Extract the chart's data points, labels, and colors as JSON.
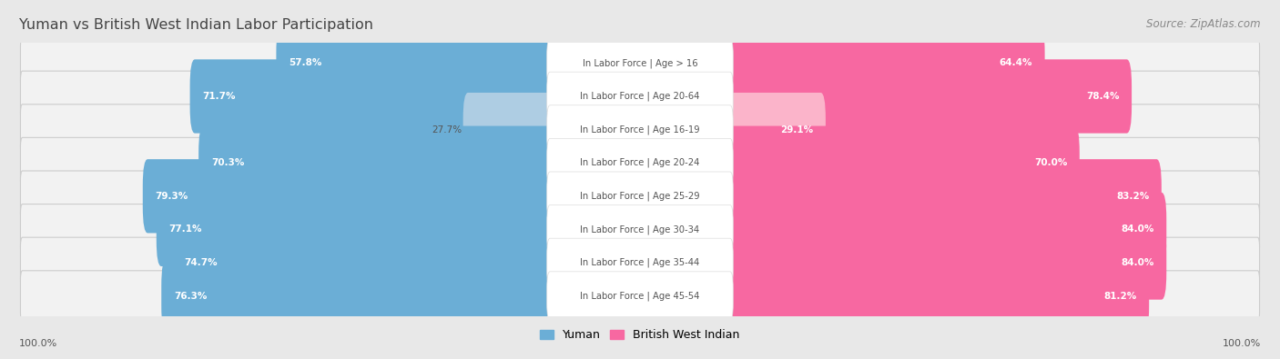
{
  "title": "Yuman vs British West Indian Labor Participation",
  "source": "Source: ZipAtlas.com",
  "categories": [
    "In Labor Force | Age > 16",
    "In Labor Force | Age 20-64",
    "In Labor Force | Age 16-19",
    "In Labor Force | Age 20-24",
    "In Labor Force | Age 25-29",
    "In Labor Force | Age 30-34",
    "In Labor Force | Age 35-44",
    "In Labor Force | Age 45-54"
  ],
  "yuman_values": [
    57.8,
    71.7,
    27.7,
    70.3,
    79.3,
    77.1,
    74.7,
    76.3
  ],
  "bwi_values": [
    64.4,
    78.4,
    29.1,
    70.0,
    83.2,
    84.0,
    84.0,
    81.2
  ],
  "yuman_color": "#6baed6",
  "yuman_color_light": "#aecde3",
  "bwi_color": "#f768a1",
  "bwi_color_light": "#fbb4ca",
  "yuman_label": "Yuman",
  "bwi_label": "British West Indian",
  "background_color": "#e8e8e8",
  "row_bg_color": "#f2f2f2",
  "row_bg_dark": "#e0e0e0",
  "max_value": 100.0,
  "legend_yuman_color": "#6baed6",
  "legend_bwi_color": "#f768a1",
  "title_color": "#444444",
  "source_color": "#888888",
  "label_color": "#555555",
  "value_color_white": "#ffffff",
  "value_color_dark": "#555555",
  "center_label_bg": "#ffffff",
  "center_label_color": "#555555"
}
